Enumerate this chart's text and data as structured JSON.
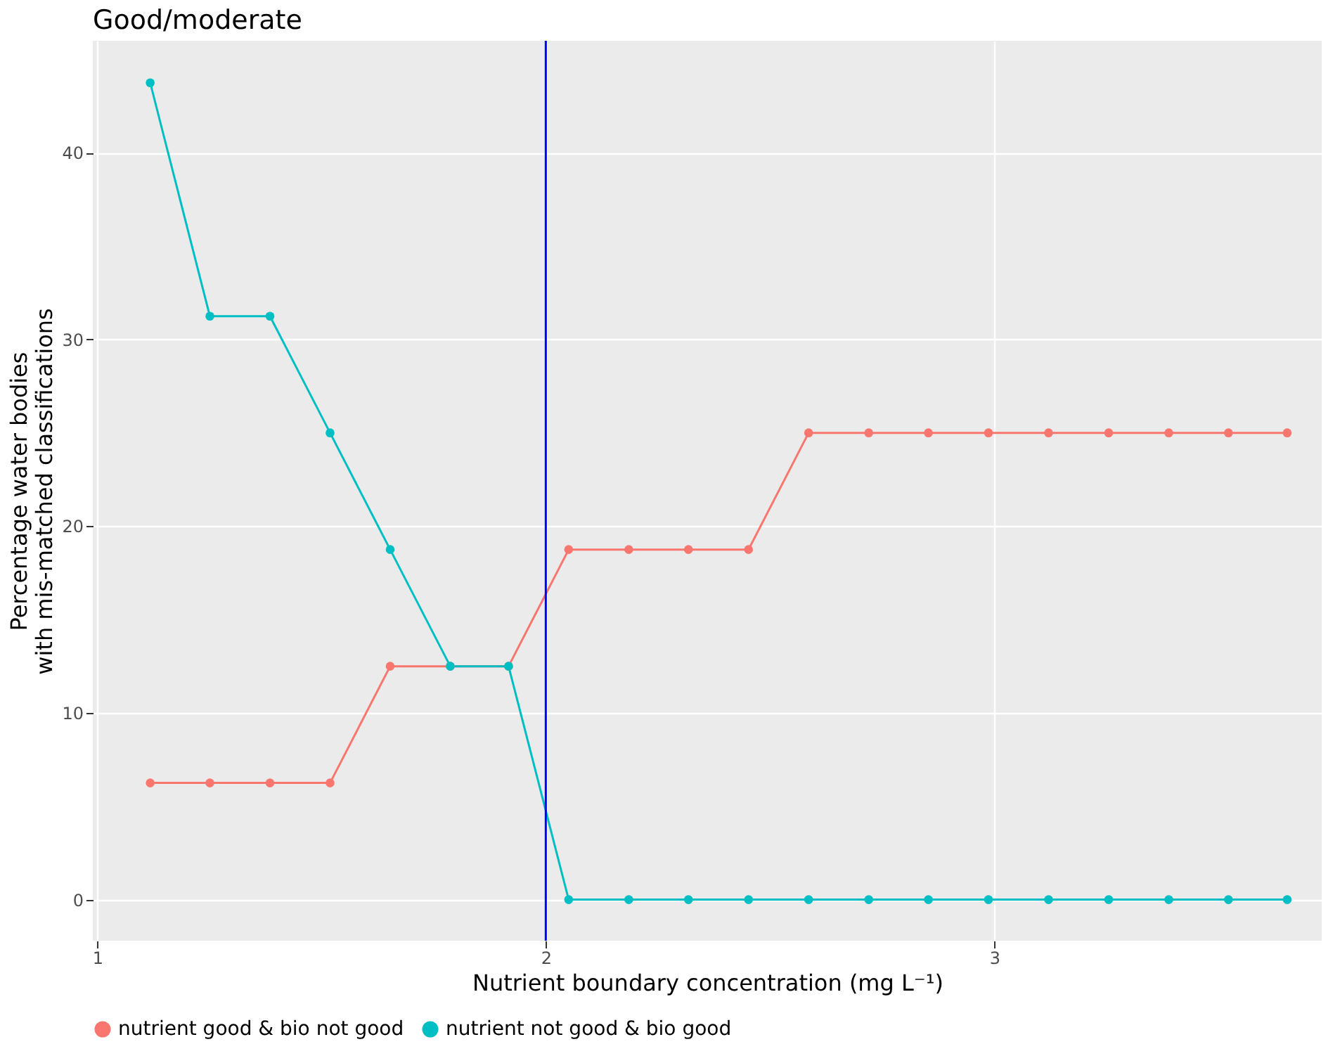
{
  "chart_data": {
    "type": "line",
    "title": "Good/moderate",
    "xlabel": "Nutrient boundary concentration (mg L⁻¹)",
    "ylabel": "Percentage water bodies\nwith mis-matched classifications",
    "x": [
      1.118,
      1.251,
      1.385,
      1.519,
      1.653,
      1.787,
      1.917,
      2.051,
      2.185,
      2.318,
      2.452,
      2.586,
      2.72,
      2.853,
      2.987,
      3.121,
      3.255,
      3.389,
      3.522,
      3.653
    ],
    "series": [
      {
        "name": "nutrient good & bio not good",
        "color": "#f8766d",
        "values": [
          6.25,
          6.25,
          6.25,
          6.25,
          12.5,
          12.5,
          12.5,
          18.75,
          18.75,
          18.75,
          18.75,
          25,
          25,
          25,
          25,
          25,
          25,
          25,
          25,
          25
        ]
      },
      {
        "name": "nutrient not good & bio good",
        "color": "#00bfc4",
        "values": [
          43.75,
          31.25,
          31.25,
          25,
          18.75,
          12.5,
          12.5,
          0,
          0,
          0,
          0,
          0,
          0,
          0,
          0,
          0,
          0,
          0,
          0,
          0
        ]
      }
    ],
    "xlim": [
      0.99,
      3.73
    ],
    "xticks": [
      1,
      2,
      3
    ],
    "ylim": [
      -2.2,
      46
    ],
    "yticks": [
      0,
      10,
      20,
      30,
      40
    ],
    "ref_lines": [
      {
        "axis": "x",
        "value": 2,
        "color": "#0000ff"
      }
    ],
    "grid": true,
    "legend": "bottom",
    "marker": "circle",
    "line_style": "solid"
  }
}
